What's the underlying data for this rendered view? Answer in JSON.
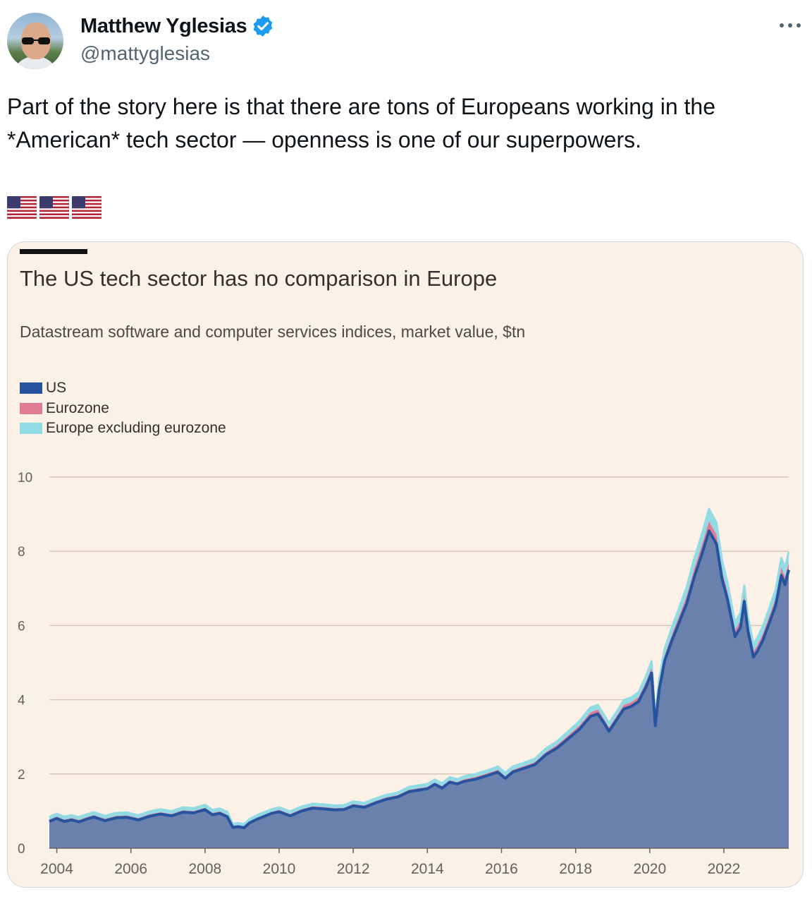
{
  "author": {
    "name": "Matthew Yglesias",
    "handle": "@mattyglesias",
    "verified": true,
    "verified_color": "#1d9bf0"
  },
  "tweet": {
    "text": "Part of the story here is that there are tons of Europeans working in the *American* tech sector — openness is one of our superpowers.",
    "emoji": [
      "🇺🇸",
      "🇺🇸",
      "🇺🇸"
    ]
  },
  "icons": {
    "more": "more-icon",
    "verified": "verified-badge-icon"
  },
  "chart_data": {
    "type": "area",
    "title": "The US tech sector has no comparison in Europe",
    "subtitle": "Datastream software and computer services indices, market value, $tn",
    "stacked": true,
    "ylim": [
      0,
      10
    ],
    "yticks": [
      0,
      2,
      4,
      6,
      8,
      10
    ],
    "xlim": [
      2003.8,
      2023.75
    ],
    "xticks": [
      2004,
      2006,
      2008,
      2010,
      2012,
      2014,
      2016,
      2018,
      2020,
      2022
    ],
    "grid": true,
    "legend_placement": "top-left",
    "x": [
      2003.8,
      2004.0,
      2004.2,
      2004.4,
      2004.6,
      2004.8,
      2005.0,
      2005.3,
      2005.6,
      2005.9,
      2006.2,
      2006.5,
      2006.8,
      2007.1,
      2007.4,
      2007.7,
      2008.0,
      2008.2,
      2008.4,
      2008.6,
      2008.75,
      2008.9,
      2009.05,
      2009.2,
      2009.4,
      2009.6,
      2009.8,
      2010.0,
      2010.3,
      2010.6,
      2010.9,
      2011.2,
      2011.5,
      2011.75,
      2012.0,
      2012.3,
      2012.6,
      2012.9,
      2013.2,
      2013.5,
      2013.8,
      2014.0,
      2014.2,
      2014.4,
      2014.6,
      2014.8,
      2015.0,
      2015.3,
      2015.6,
      2015.9,
      2016.1,
      2016.3,
      2016.6,
      2016.9,
      2017.2,
      2017.5,
      2017.8,
      2018.1,
      2018.4,
      2018.6,
      2018.75,
      2018.9,
      2019.1,
      2019.3,
      2019.5,
      2019.7,
      2019.9,
      2020.05,
      2020.15,
      2020.25,
      2020.4,
      2020.6,
      2020.8,
      2021.0,
      2021.2,
      2021.4,
      2021.6,
      2021.8,
      2021.95,
      2022.1,
      2022.3,
      2022.45,
      2022.55,
      2022.65,
      2022.8,
      2022.9,
      2023.05,
      2023.2,
      2023.4,
      2023.55,
      2023.65,
      2023.75
    ],
    "series": [
      {
        "name": "US",
        "color": "#27539e",
        "values": [
          0.72,
          0.8,
          0.72,
          0.76,
          0.71,
          0.78,
          0.84,
          0.74,
          0.82,
          0.83,
          0.76,
          0.86,
          0.92,
          0.87,
          0.97,
          0.95,
          1.04,
          0.9,
          0.94,
          0.85,
          0.56,
          0.58,
          0.55,
          0.68,
          0.78,
          0.86,
          0.94,
          0.98,
          0.87,
          1.0,
          1.08,
          1.06,
          1.03,
          1.04,
          1.14,
          1.1,
          1.22,
          1.32,
          1.38,
          1.52,
          1.57,
          1.6,
          1.72,
          1.62,
          1.78,
          1.73,
          1.8,
          1.86,
          1.95,
          2.05,
          1.88,
          2.05,
          2.15,
          2.25,
          2.52,
          2.7,
          2.95,
          3.2,
          3.55,
          3.62,
          3.4,
          3.15,
          3.45,
          3.75,
          3.82,
          3.95,
          4.35,
          4.72,
          3.3,
          4.25,
          5.05,
          5.6,
          6.1,
          6.6,
          7.3,
          7.9,
          8.55,
          8.2,
          7.25,
          6.7,
          5.7,
          5.95,
          6.65,
          5.85,
          5.15,
          5.3,
          5.6,
          6.0,
          6.55,
          7.35,
          7.1,
          7.5
        ]
      },
      {
        "name": "Eurozone",
        "color": "#e07b94",
        "values": [
          0.05,
          0.05,
          0.05,
          0.05,
          0.05,
          0.05,
          0.05,
          0.05,
          0.05,
          0.05,
          0.05,
          0.05,
          0.05,
          0.05,
          0.05,
          0.05,
          0.05,
          0.05,
          0.05,
          0.05,
          0.04,
          0.04,
          0.04,
          0.04,
          0.04,
          0.04,
          0.04,
          0.05,
          0.05,
          0.05,
          0.05,
          0.05,
          0.05,
          0.05,
          0.05,
          0.05,
          0.05,
          0.05,
          0.05,
          0.05,
          0.05,
          0.05,
          0.05,
          0.05,
          0.05,
          0.05,
          0.06,
          0.06,
          0.06,
          0.06,
          0.06,
          0.06,
          0.06,
          0.07,
          0.07,
          0.08,
          0.09,
          0.1,
          0.11,
          0.11,
          0.1,
          0.1,
          0.1,
          0.11,
          0.11,
          0.12,
          0.13,
          0.14,
          0.1,
          0.12,
          0.14,
          0.16,
          0.18,
          0.2,
          0.22,
          0.24,
          0.26,
          0.25,
          0.22,
          0.2,
          0.17,
          0.18,
          0.19,
          0.17,
          0.15,
          0.16,
          0.17,
          0.18,
          0.19,
          0.21,
          0.2,
          0.21
        ]
      },
      {
        "name": "Europe excluding eurozone",
        "color": "#92dbe4",
        "values": [
          0.08,
          0.08,
          0.08,
          0.08,
          0.08,
          0.08,
          0.08,
          0.08,
          0.08,
          0.08,
          0.08,
          0.08,
          0.08,
          0.08,
          0.08,
          0.08,
          0.08,
          0.08,
          0.08,
          0.08,
          0.06,
          0.06,
          0.06,
          0.06,
          0.07,
          0.07,
          0.07,
          0.07,
          0.07,
          0.07,
          0.07,
          0.07,
          0.07,
          0.07,
          0.07,
          0.07,
          0.07,
          0.07,
          0.07,
          0.08,
          0.08,
          0.08,
          0.08,
          0.08,
          0.08,
          0.08,
          0.08,
          0.08,
          0.08,
          0.09,
          0.09,
          0.09,
          0.09,
          0.09,
          0.1,
          0.1,
          0.11,
          0.12,
          0.13,
          0.13,
          0.12,
          0.12,
          0.12,
          0.13,
          0.13,
          0.14,
          0.16,
          0.18,
          0.14,
          0.16,
          0.18,
          0.2,
          0.22,
          0.25,
          0.28,
          0.3,
          0.33,
          0.32,
          0.28,
          0.25,
          0.21,
          0.22,
          0.24,
          0.21,
          0.19,
          0.2,
          0.21,
          0.22,
          0.24,
          0.26,
          0.25,
          0.27
        ]
      }
    ]
  }
}
